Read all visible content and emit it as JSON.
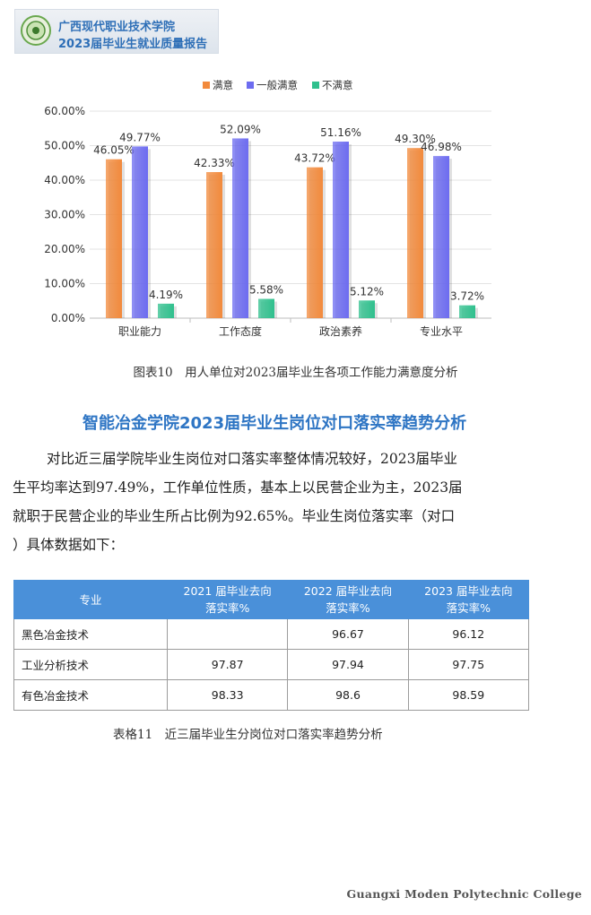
{
  "header": {
    "title": "广西现代职业技术学院",
    "subtitle": "2023届毕业生就业质量报告"
  },
  "chart_data": {
    "type": "bar",
    "categories": [
      "职业能力",
      "工作态度",
      "政治素养",
      "专业水平"
    ],
    "series": [
      {
        "name": "满意",
        "values": [
          46.05,
          42.33,
          43.72,
          49.3
        ],
        "color": "#f28a3c",
        "labels": [
          "46.05%",
          "42.33%",
          "43.72%",
          "49.30%"
        ]
      },
      {
        "name": "一般满意",
        "values": [
          49.77,
          52.09,
          51.16,
          46.98
        ],
        "color": "#6d6cf0",
        "labels": [
          "49.77%",
          "52.09%",
          "51.16%",
          "46.98%"
        ]
      },
      {
        "name": "不满意",
        "values": [
          4.19,
          5.58,
          5.12,
          3.72
        ],
        "color": "#2fc08d",
        "labels": [
          "4.19%",
          "5.58%",
          "5.12%",
          "3.72%"
        ]
      }
    ],
    "ylim": [
      0,
      60
    ],
    "yticks": [
      "0.00%",
      "10.00%",
      "20.00%",
      "30.00%",
      "40.00%",
      "50.00%",
      "60.00%"
    ],
    "grid": true,
    "legend": "top-center"
  },
  "chart_caption": "图表10　用人单位对2023届毕业生各项工作能力满意度分析",
  "section_title": "智能冶金学院2023届毕业生岗位对口落实率趋势分析",
  "paragraph_lines": [
    "对比近三届学院毕业生岗位对口落实率整体情况较好，2023届毕业",
    "生平均率达到97.49%，工作单位性质，基本上以民营企业为主，2023届",
    "就职于民营企业的毕业生所占比例为92.65%。毕业生岗位落实率（对口",
    "）具体数据如下："
  ],
  "table": {
    "headers": [
      "专业",
      "2021 届毕业去向\n落实率%",
      "2022 届毕业去向\n落实率%",
      "2023 届毕业去向\n落实率%"
    ],
    "rows": [
      [
        "黑色冶金技术",
        "",
        "96.67",
        "96.12"
      ],
      [
        "工业分析技术",
        "97.87",
        "97.94",
        "97.75"
      ],
      [
        "有色冶金技术",
        "98.33",
        "98.6",
        "98.59"
      ]
    ]
  },
  "table_caption": "表格11　近三届毕业生分岗位对口落实率趋势分析",
  "footer": "Guangxi Moden Polytechnic College"
}
